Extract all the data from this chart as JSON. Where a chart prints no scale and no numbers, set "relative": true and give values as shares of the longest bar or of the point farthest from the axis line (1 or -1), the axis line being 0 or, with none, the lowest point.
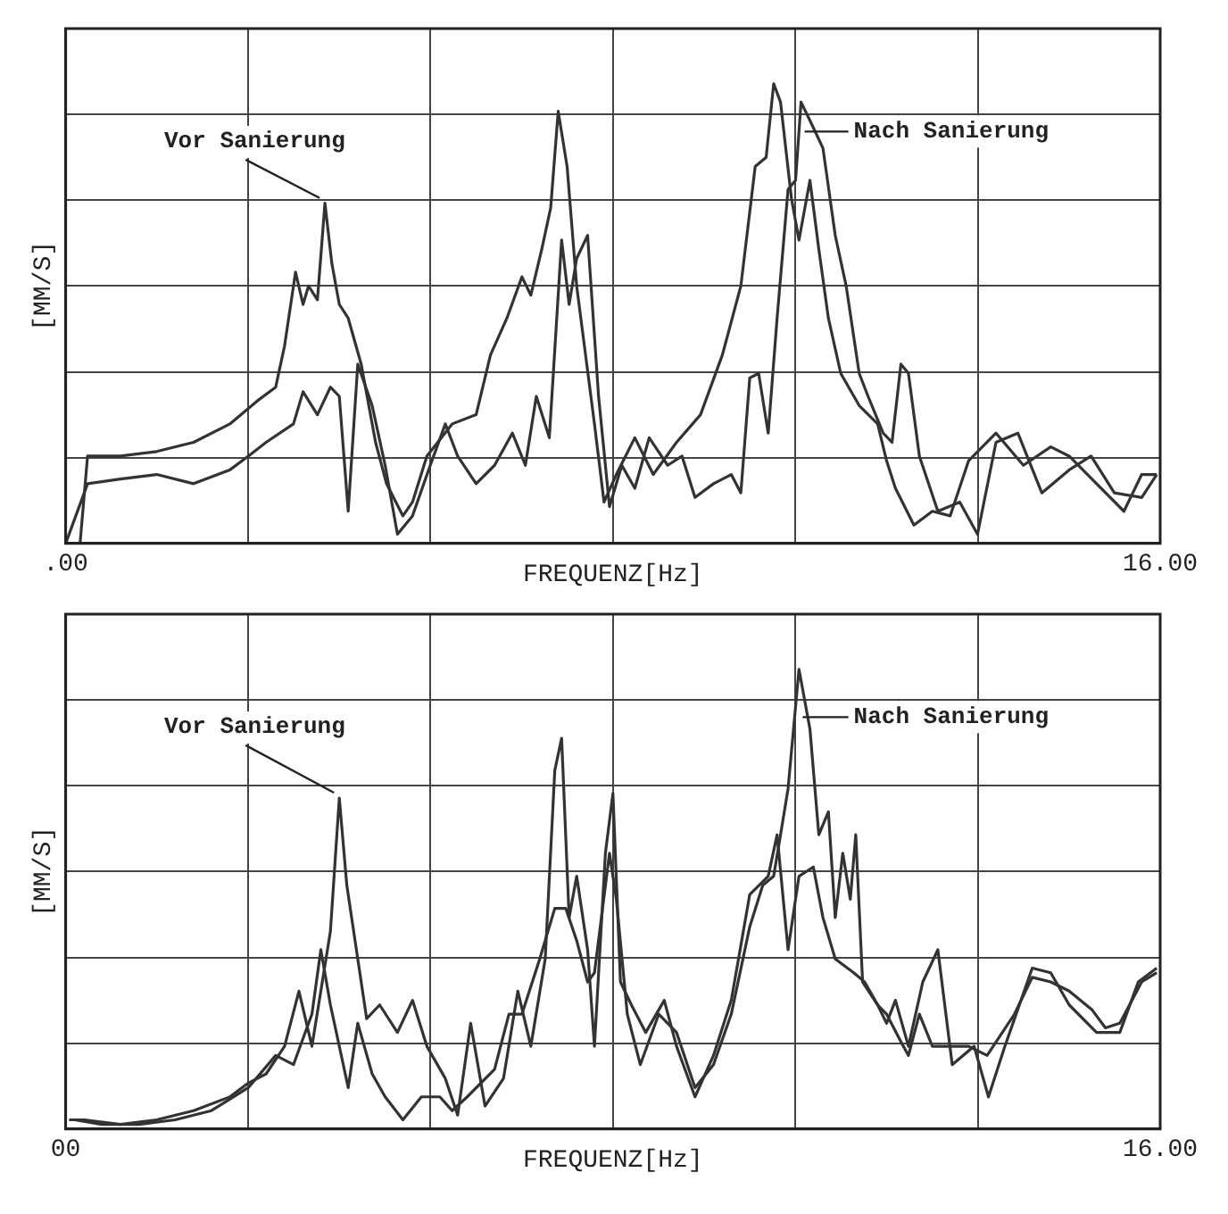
{
  "chart_data": [
    {
      "type": "line",
      "relative": true,
      "xlabel": "FREQUENZ[Hz]",
      "ylabel": "[MM/S]",
      "grid": true,
      "legend": false,
      "marker": "none",
      "line_style": "solid",
      "xlim": [
        0,
        16
      ],
      "xticks": [
        {
          "value": 0,
          "label": ".00"
        },
        {
          "value": 2.667,
          "label": null
        },
        {
          "value": 5.333,
          "label": null
        },
        {
          "value": 8,
          "label": null
        },
        {
          "value": 10.667,
          "label": null
        },
        {
          "value": 13.333,
          "label": null
        },
        {
          "value": 16,
          "label": "16.00"
        }
      ],
      "series": [
        {
          "name": "Vor Sanierung",
          "color": "#333333",
          "x": [
            0.21,
            0.32,
            0.8,
            1.33,
            1.87,
            2.4,
            2.8,
            3.07,
            3.2,
            3.36,
            3.47,
            3.55,
            3.68,
            3.79,
            3.89,
            4.0,
            4.13,
            4.32,
            4.53,
            4.69,
            4.93,
            5.07,
            5.28,
            5.65,
            6.0,
            6.21,
            6.45,
            6.67,
            6.8,
            6.96,
            7.09,
            7.2,
            7.33,
            7.47,
            7.6,
            7.73,
            7.87,
            8.05,
            8.32,
            8.59,
            8.93,
            9.28,
            9.6,
            9.87,
            10.08,
            10.24,
            10.35,
            10.45,
            10.61,
            10.72,
            10.88,
            11.01,
            11.15,
            11.33,
            11.6,
            11.87,
            12.0,
            12.13,
            12.4,
            12.67,
            12.93,
            13.2,
            13.6,
            14.0,
            14.4,
            14.67,
            15.07,
            15.47,
            15.73,
            15.95
          ],
          "values": [
            0,
            0.19,
            0.19,
            0.2,
            0.22,
            0.26,
            0.31,
            0.34,
            0.43,
            0.59,
            0.52,
            0.56,
            0.53,
            0.74,
            0.61,
            0.52,
            0.49,
            0.39,
            0.22,
            0.13,
            0.06,
            0.09,
            0.19,
            0.26,
            0.28,
            0.41,
            0.49,
            0.58,
            0.54,
            0.64,
            0.73,
            0.94,
            0.82,
            0.56,
            0.41,
            0.26,
            0.09,
            0.15,
            0.23,
            0.15,
            0.22,
            0.28,
            0.41,
            0.56,
            0.82,
            0.84,
            1.0,
            0.96,
            0.75,
            0.66,
            0.79,
            0.64,
            0.49,
            0.37,
            0.3,
            0.26,
            0.18,
            0.12,
            0.04,
            0.07,
            0.06,
            0.18,
            0.24,
            0.17,
            0.21,
            0.19,
            0.13,
            0.07,
            0.15,
            0.15
          ]
        },
        {
          "name": "Nach Sanierung",
          "color": "#333333",
          "x": [
            0,
            0.32,
            0.8,
            1.33,
            1.87,
            2.4,
            2.67,
            2.93,
            3.33,
            3.47,
            3.68,
            3.87,
            4.0,
            4.13,
            4.27,
            4.48,
            4.67,
            4.85,
            5.07,
            5.33,
            5.55,
            5.73,
            6.0,
            6.27,
            6.53,
            6.72,
            6.88,
            7.07,
            7.25,
            7.36,
            7.47,
            7.63,
            7.79,
            7.95,
            8.13,
            8.32,
            8.53,
            8.8,
            9.01,
            9.2,
            9.47,
            9.73,
            9.87,
            10.0,
            10.13,
            10.27,
            10.4,
            10.56,
            10.67,
            10.75,
            10.88,
            11.07,
            11.25,
            11.41,
            11.6,
            11.73,
            11.95,
            12.08,
            12.21,
            12.32,
            12.48,
            12.75,
            13.07,
            13.33,
            13.6,
            13.92,
            14.27,
            14.67,
            14.99,
            15.33,
            15.73,
            15.95
          ],
          "values": [
            0,
            0.13,
            0.14,
            0.15,
            0.13,
            0.16,
            0.19,
            0.22,
            0.26,
            0.33,
            0.28,
            0.34,
            0.32,
            0.07,
            0.39,
            0.3,
            0.17,
            0.02,
            0.06,
            0.17,
            0.26,
            0.19,
            0.13,
            0.17,
            0.24,
            0.17,
            0.32,
            0.23,
            0.66,
            0.52,
            0.62,
            0.67,
            0.32,
            0.08,
            0.17,
            0.12,
            0.23,
            0.17,
            0.19,
            0.1,
            0.13,
            0.15,
            0.11,
            0.36,
            0.37,
            0.24,
            0.49,
            0.77,
            0.79,
            0.96,
            0.92,
            0.86,
            0.67,
            0.56,
            0.37,
            0.32,
            0.24,
            0.22,
            0.39,
            0.37,
            0.19,
            0.07,
            0.09,
            0.02,
            0.22,
            0.24,
            0.11,
            0.16,
            0.19,
            0.11,
            0.1,
            0.15
          ]
        }
      ]
    },
    {
      "type": "line",
      "relative": true,
      "xlabel": "FREQUENZ[Hz]",
      "ylabel": "[MM/S]",
      "grid": true,
      "legend": false,
      "marker": "none",
      "line_style": "solid",
      "xlim": [
        0,
        16
      ],
      "xticks": [
        {
          "value": 0,
          "label": "00"
        },
        {
          "value": 2.667,
          "label": null
        },
        {
          "value": 5.333,
          "label": null
        },
        {
          "value": 8,
          "label": null
        },
        {
          "value": 10.667,
          "label": null
        },
        {
          "value": 13.333,
          "label": null
        },
        {
          "value": 16,
          "label": "16.00"
        }
      ],
      "series": [
        {
          "name": "Vor Sanierung",
          "color": "#333333",
          "x": [
            0.05,
            0.27,
            0.8,
            1.33,
            1.87,
            2.4,
            2.67,
            2.93,
            3.2,
            3.41,
            3.6,
            3.73,
            3.87,
            4.0,
            4.11,
            4.27,
            4.4,
            4.59,
            4.85,
            5.07,
            5.28,
            5.55,
            5.73,
            5.92,
            6.13,
            6.4,
            6.61,
            6.8,
            7.01,
            7.15,
            7.25,
            7.36,
            7.47,
            7.63,
            7.73,
            7.89,
            8.0,
            8.11,
            8.27,
            8.48,
            8.75,
            8.93,
            9.2,
            9.47,
            9.73,
            10.0,
            10.27,
            10.4,
            10.56,
            10.72,
            10.93,
            11.07,
            11.25,
            11.52,
            11.68,
            11.87,
            12.0,
            12.21,
            12.32,
            12.48,
            12.67,
            12.93,
            13.2,
            13.47,
            13.87,
            14.13,
            14.4,
            14.67,
            15.0,
            15.2,
            15.41,
            15.73,
            15.95
          ],
          "values": [
            0.02,
            0.02,
            0.01,
            0.02,
            0.04,
            0.07,
            0.1,
            0.12,
            0.18,
            0.3,
            0.18,
            0.3,
            0.43,
            0.72,
            0.53,
            0.37,
            0.24,
            0.27,
            0.21,
            0.28,
            0.18,
            0.11,
            0.03,
            0.23,
            0.05,
            0.11,
            0.3,
            0.18,
            0.37,
            0.78,
            0.85,
            0.46,
            0.55,
            0.39,
            0.18,
            0.6,
            0.73,
            0.32,
            0.27,
            0.21,
            0.28,
            0.18,
            0.07,
            0.16,
            0.28,
            0.51,
            0.55,
            0.64,
            0.39,
            0.55,
            0.57,
            0.46,
            0.37,
            0.34,
            0.32,
            0.27,
            0.25,
            0.19,
            0.16,
            0.25,
            0.18,
            0.18,
            0.18,
            0.16,
            0.25,
            0.33,
            0.32,
            0.3,
            0.26,
            0.22,
            0.23,
            0.32,
            0.34
          ]
        },
        {
          "name": "Nach Sanierung",
          "color": "#333333",
          "x": [
            0.13,
            0.53,
            1.07,
            1.6,
            2.13,
            2.67,
            3.07,
            3.33,
            3.6,
            3.73,
            3.87,
            4.13,
            4.27,
            4.48,
            4.67,
            4.93,
            5.2,
            5.47,
            5.65,
            5.87,
            6.27,
            6.48,
            6.67,
            6.93,
            7.15,
            7.31,
            7.47,
            7.63,
            7.73,
            7.95,
            8.05,
            8.21,
            8.4,
            8.67,
            8.93,
            9.2,
            9.47,
            9.73,
            10.0,
            10.19,
            10.35,
            10.45,
            10.56,
            10.72,
            10.88,
            11.01,
            11.15,
            11.25,
            11.36,
            11.47,
            11.55,
            11.65,
            11.87,
            12.0,
            12.13,
            12.32,
            12.53,
            12.75,
            12.96,
            13.28,
            13.49,
            13.73,
            14.13,
            14.4,
            14.67,
            15.07,
            15.41,
            15.68,
            15.95
          ],
          "values": [
            0.02,
            0.01,
            0.01,
            0.02,
            0.04,
            0.09,
            0.16,
            0.14,
            0.25,
            0.39,
            0.27,
            0.09,
            0.23,
            0.12,
            0.07,
            0.02,
            0.07,
            0.07,
            0.04,
            0.07,
            0.13,
            0.25,
            0.25,
            0.37,
            0.48,
            0.48,
            0.41,
            0.32,
            0.34,
            0.6,
            0.5,
            0.25,
            0.14,
            0.25,
            0.21,
            0.09,
            0.14,
            0.25,
            0.44,
            0.53,
            0.55,
            0.64,
            0.74,
            1.0,
            0.87,
            0.64,
            0.69,
            0.46,
            0.6,
            0.5,
            0.64,
            0.32,
            0.27,
            0.23,
            0.28,
            0.18,
            0.32,
            0.39,
            0.14,
            0.18,
            0.07,
            0.18,
            0.35,
            0.34,
            0.27,
            0.21,
            0.21,
            0.32,
            0.35
          ]
        }
      ]
    }
  ]
}
